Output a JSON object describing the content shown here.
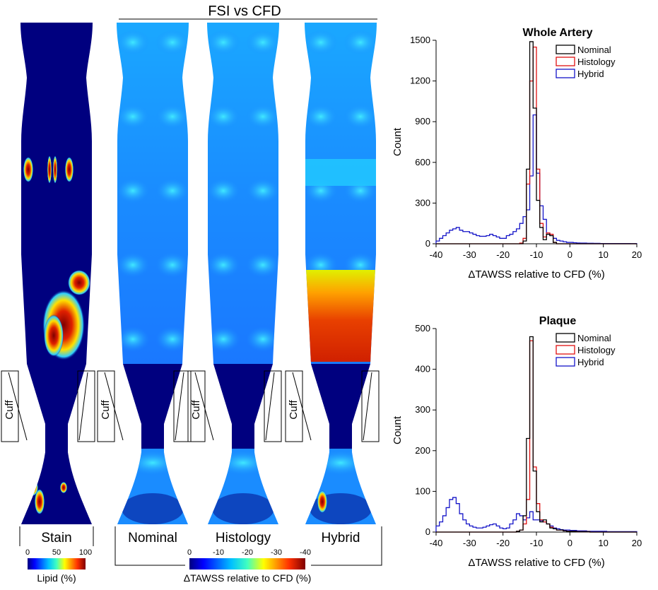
{
  "colors": {
    "nominal": "#000000",
    "histology": "#e01010",
    "hybrid": "#1414c8",
    "jet_dark_blue": "#00007f",
    "jet_mid_blue": "#1a8cff",
    "jet_cyan": "#22c8ff",
    "jet_yellow": "#f0f000",
    "jet_red": "#e02000"
  },
  "left_panel": {
    "header": "FSI vs CFD",
    "cuff_label": "Cuff",
    "vessels": [
      {
        "label": "Stain",
        "type": "lipid"
      },
      {
        "label": "Nominal",
        "type": "tawss"
      },
      {
        "label": "Histology",
        "type": "tawss"
      },
      {
        "label": "Hybrid",
        "type": "tawss"
      }
    ],
    "lipid_colorbar": {
      "ticks": [
        "0",
        "50",
        "100"
      ],
      "label": "Lipid (%)"
    },
    "tawss_colorbar": {
      "ticks": [
        "0",
        "-10",
        "-20",
        "-30",
        "-40"
      ],
      "label": "ΔTAWSS relative to CFD (%)"
    }
  },
  "chart_data": [
    {
      "type": "histogram",
      "title": "Whole Artery",
      "xlabel": "ΔTAWSS relative to CFD (%)",
      "ylabel": "Count",
      "xlim": [
        -40,
        20
      ],
      "ylim": [
        0,
        1500
      ],
      "xticks": [
        -40,
        -30,
        -20,
        -10,
        0,
        10,
        20
      ],
      "yticks": [
        0,
        300,
        600,
        900,
        1200,
        1500
      ],
      "legend_position": "top-right",
      "bin_width": 1,
      "x": [
        -40,
        -39,
        -38,
        -37,
        -36,
        -35,
        -34,
        -33,
        -32,
        -31,
        -30,
        -29,
        -28,
        -27,
        -26,
        -25,
        -24,
        -23,
        -22,
        -21,
        -20,
        -19,
        -18,
        -17,
        -16,
        -15,
        -14,
        -13,
        -12,
        -11,
        -10,
        -9,
        -8,
        -7,
        -6,
        -5,
        -4,
        -3,
        -2,
        -1,
        0,
        1,
        2,
        3,
        4,
        5,
        6,
        7,
        8,
        9,
        10,
        11,
        12,
        13,
        14,
        15,
        16,
        17,
        18,
        19
      ],
      "series": [
        {
          "name": "Nominal",
          "values": [
            0,
            0,
            0,
            0,
            0,
            0,
            0,
            0,
            0,
            0,
            0,
            0,
            0,
            0,
            0,
            0,
            0,
            0,
            0,
            0,
            0,
            0,
            0,
            0,
            0,
            0,
            20,
            550,
            1490,
            1000,
            320,
            120,
            30,
            70,
            60,
            10,
            0,
            0,
            0,
            0,
            0,
            0,
            0,
            0,
            0,
            0,
            0,
            0,
            0,
            0,
            0,
            0,
            0,
            0,
            0,
            0,
            0,
            0,
            0,
            0
          ]
        },
        {
          "name": "Histology",
          "values": [
            0,
            0,
            0,
            0,
            0,
            0,
            0,
            0,
            0,
            0,
            0,
            0,
            0,
            0,
            0,
            0,
            0,
            0,
            0,
            0,
            0,
            0,
            0,
            0,
            0,
            5,
            40,
            440,
            1200,
            1450,
            550,
            150,
            50,
            80,
            70,
            10,
            0,
            0,
            0,
            0,
            0,
            0,
            0,
            0,
            0,
            0,
            0,
            0,
            0,
            0,
            0,
            0,
            0,
            0,
            0,
            0,
            0,
            0,
            0,
            0
          ]
        },
        {
          "name": "Hybrid",
          "values": [
            20,
            40,
            60,
            80,
            100,
            110,
            120,
            100,
            90,
            90,
            80,
            70,
            60,
            55,
            55,
            60,
            70,
            60,
            50,
            40,
            40,
            60,
            70,
            90,
            110,
            150,
            200,
            250,
            500,
            950,
            520,
            280,
            180,
            80,
            60,
            40,
            25,
            20,
            15,
            10,
            10,
            8,
            6,
            5,
            5,
            4,
            4,
            3,
            3,
            2,
            2,
            2,
            2,
            2,
            2,
            2,
            2,
            2,
            1,
            1
          ]
        }
      ]
    },
    {
      "type": "histogram",
      "title": "Plaque",
      "xlabel": "ΔTAWSS relative to CFD (%)",
      "ylabel": "Count",
      "xlim": [
        -40,
        20
      ],
      "ylim": [
        0,
        500
      ],
      "xticks": [
        -40,
        -30,
        -20,
        -10,
        0,
        10,
        20
      ],
      "yticks": [
        0,
        100,
        200,
        300,
        400,
        500
      ],
      "legend_position": "top-right",
      "bin_width": 1,
      "x": [
        -40,
        -39,
        -38,
        -37,
        -36,
        -35,
        -34,
        -33,
        -32,
        -31,
        -30,
        -29,
        -28,
        -27,
        -26,
        -25,
        -24,
        -23,
        -22,
        -21,
        -20,
        -19,
        -18,
        -17,
        -16,
        -15,
        -14,
        -13,
        -12,
        -11,
        -10,
        -9,
        -8,
        -7,
        -6,
        -5,
        -4,
        -3,
        -2,
        -1,
        0,
        1,
        2,
        3,
        4,
        5,
        6,
        7,
        8,
        9,
        10,
        11,
        12,
        13,
        14,
        15,
        16,
        17,
        18,
        19
      ],
      "series": [
        {
          "name": "Nominal",
          "values": [
            0,
            0,
            0,
            0,
            0,
            0,
            0,
            0,
            0,
            0,
            0,
            0,
            0,
            0,
            0,
            0,
            0,
            0,
            0,
            0,
            0,
            0,
            0,
            0,
            2,
            5,
            40,
            230,
            480,
            150,
            50,
            25,
            30,
            20,
            10,
            8,
            5,
            5,
            3,
            2,
            2,
            2,
            1,
            1,
            1,
            1,
            0,
            0,
            0,
            0,
            0,
            0,
            0,
            0,
            0,
            0,
            0,
            0,
            0,
            0
          ]
        },
        {
          "name": "Histology",
          "values": [
            0,
            0,
            0,
            0,
            0,
            0,
            0,
            0,
            0,
            0,
            0,
            0,
            0,
            0,
            0,
            0,
            0,
            0,
            0,
            0,
            0,
            0,
            0,
            0,
            2,
            5,
            20,
            80,
            470,
            160,
            70,
            30,
            25,
            20,
            12,
            8,
            5,
            5,
            3,
            2,
            2,
            2,
            1,
            1,
            1,
            1,
            0,
            0,
            0,
            0,
            0,
            0,
            0,
            0,
            0,
            0,
            0,
            0,
            0,
            0
          ]
        },
        {
          "name": "Hybrid",
          "values": [
            15,
            25,
            40,
            60,
            80,
            85,
            70,
            45,
            30,
            20,
            15,
            12,
            10,
            10,
            12,
            15,
            18,
            20,
            15,
            10,
            8,
            10,
            20,
            30,
            45,
            40,
            30,
            35,
            50,
            30,
            30,
            28,
            25,
            20,
            15,
            10,
            8,
            6,
            5,
            5,
            4,
            4,
            3,
            3,
            3,
            2,
            2,
            2,
            2,
            2,
            2,
            1,
            1,
            1,
            1,
            1,
            1,
            1,
            1,
            1
          ]
        }
      ]
    }
  ]
}
